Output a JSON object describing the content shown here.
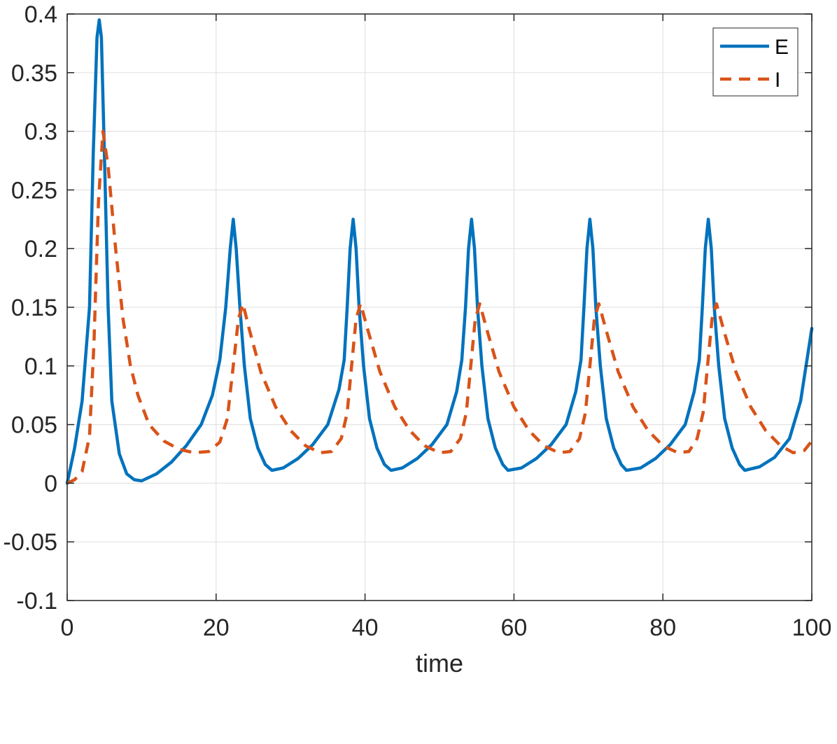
{
  "chart_data": {
    "type": "line",
    "title": "",
    "xlabel": "time",
    "ylabel": "",
    "xlim": [
      0,
      100
    ],
    "ylim": [
      -0.1,
      0.4
    ],
    "xticks": [
      "0",
      "20",
      "40",
      "60",
      "80",
      "100"
    ],
    "yticks": [
      "-0.1",
      "-0.05",
      "0",
      "0.05",
      "0.1",
      "0.15",
      "0.2",
      "0.25",
      "0.3",
      "0.35",
      "0.4"
    ],
    "grid": true,
    "legend_position": "top-right",
    "series": [
      {
        "name": "E",
        "color": "#0072BD",
        "style": "solid",
        "points": [
          [
            0,
            0.0
          ],
          [
            1,
            0.03
          ],
          [
            2,
            0.07
          ],
          [
            3,
            0.15
          ],
          [
            3.5,
            0.28
          ],
          [
            4,
            0.38
          ],
          [
            4.3,
            0.395
          ],
          [
            4.6,
            0.38
          ],
          [
            5,
            0.28
          ],
          [
            5.5,
            0.15
          ],
          [
            6,
            0.07
          ],
          [
            7,
            0.025
          ],
          [
            8,
            0.008
          ],
          [
            9,
            0.003
          ],
          [
            10,
            0.002
          ],
          [
            12,
            0.008
          ],
          [
            14,
            0.018
          ],
          [
            16,
            0.032
          ],
          [
            18,
            0.05
          ],
          [
            19.5,
            0.075
          ],
          [
            20.5,
            0.105
          ],
          [
            21.3,
            0.15
          ],
          [
            21.9,
            0.2
          ],
          [
            22.3,
            0.225
          ],
          [
            22.7,
            0.2
          ],
          [
            23.2,
            0.15
          ],
          [
            23.8,
            0.1
          ],
          [
            24.6,
            0.055
          ],
          [
            25.6,
            0.03
          ],
          [
            26.6,
            0.016
          ],
          [
            27.5,
            0.011
          ],
          [
            29,
            0.013
          ],
          [
            31,
            0.021
          ],
          [
            33,
            0.033
          ],
          [
            35,
            0.05
          ],
          [
            36.5,
            0.08
          ],
          [
            37.2,
            0.105
          ],
          [
            37.6,
            0.15
          ],
          [
            38,
            0.2
          ],
          [
            38.4,
            0.225
          ],
          [
            38.8,
            0.2
          ],
          [
            39.2,
            0.15
          ],
          [
            39.8,
            0.1
          ],
          [
            40.6,
            0.055
          ],
          [
            41.6,
            0.03
          ],
          [
            42.6,
            0.016
          ],
          [
            43.5,
            0.011
          ],
          [
            45,
            0.013
          ],
          [
            47,
            0.021
          ],
          [
            49,
            0.033
          ],
          [
            51,
            0.05
          ],
          [
            52.3,
            0.078
          ],
          [
            53,
            0.105
          ],
          [
            53.5,
            0.15
          ],
          [
            53.9,
            0.2
          ],
          [
            54.3,
            0.225
          ],
          [
            54.7,
            0.2
          ],
          [
            55.1,
            0.15
          ],
          [
            55.7,
            0.1
          ],
          [
            56.5,
            0.055
          ],
          [
            57.5,
            0.03
          ],
          [
            58.5,
            0.016
          ],
          [
            59.2,
            0.011
          ],
          [
            61,
            0.013
          ],
          [
            63,
            0.021
          ],
          [
            65,
            0.033
          ],
          [
            67,
            0.05
          ],
          [
            68.3,
            0.078
          ],
          [
            69,
            0.105
          ],
          [
            69.4,
            0.15
          ],
          [
            69.8,
            0.2
          ],
          [
            70.2,
            0.225
          ],
          [
            70.6,
            0.2
          ],
          [
            71,
            0.15
          ],
          [
            71.6,
            0.1
          ],
          [
            72.4,
            0.055
          ],
          [
            73.4,
            0.03
          ],
          [
            74.4,
            0.016
          ],
          [
            75.1,
            0.011
          ],
          [
            77,
            0.013
          ],
          [
            79,
            0.021
          ],
          [
            81,
            0.033
          ],
          [
            83,
            0.05
          ],
          [
            84.2,
            0.078
          ],
          [
            84.9,
            0.105
          ],
          [
            85.3,
            0.15
          ],
          [
            85.7,
            0.2
          ],
          [
            86.1,
            0.225
          ],
          [
            86.5,
            0.2
          ],
          [
            86.9,
            0.15
          ],
          [
            87.5,
            0.1
          ],
          [
            88.3,
            0.055
          ],
          [
            89.3,
            0.03
          ],
          [
            90.3,
            0.016
          ],
          [
            91,
            0.011
          ],
          [
            93,
            0.014
          ],
          [
            95,
            0.022
          ],
          [
            97,
            0.038
          ],
          [
            98.5,
            0.07
          ],
          [
            100,
            0.132
          ]
        ]
      },
      {
        "name": "I",
        "color": "#D95319",
        "style": "dashed",
        "points": [
          [
            0,
            0.0
          ],
          [
            1,
            0.003
          ],
          [
            2,
            0.01
          ],
          [
            3,
            0.04
          ],
          [
            3.6,
            0.12
          ],
          [
            4.2,
            0.24
          ],
          [
            4.8,
            0.3
          ],
          [
            5.5,
            0.27
          ],
          [
            6.5,
            0.2
          ],
          [
            7.5,
            0.14
          ],
          [
            8.5,
            0.1
          ],
          [
            9.5,
            0.075
          ],
          [
            11,
            0.05
          ],
          [
            13,
            0.036
          ],
          [
            15,
            0.029
          ],
          [
            17,
            0.026
          ],
          [
            19,
            0.027
          ],
          [
            20.5,
            0.035
          ],
          [
            21.5,
            0.055
          ],
          [
            22.3,
            0.1
          ],
          [
            23,
            0.14
          ],
          [
            23.6,
            0.153
          ],
          [
            24.5,
            0.13
          ],
          [
            26,
            0.095
          ],
          [
            28,
            0.065
          ],
          [
            30,
            0.045
          ],
          [
            32,
            0.032
          ],
          [
            34,
            0.026
          ],
          [
            35.5,
            0.027
          ],
          [
            36.8,
            0.038
          ],
          [
            37.6,
            0.06
          ],
          [
            38.2,
            0.1
          ],
          [
            38.8,
            0.14
          ],
          [
            39.4,
            0.153
          ],
          [
            40.4,
            0.13
          ],
          [
            42,
            0.095
          ],
          [
            44,
            0.065
          ],
          [
            46,
            0.045
          ],
          [
            48,
            0.032
          ],
          [
            50,
            0.026
          ],
          [
            51.5,
            0.027
          ],
          [
            52.8,
            0.038
          ],
          [
            53.6,
            0.06
          ],
          [
            54.2,
            0.1
          ],
          [
            54.8,
            0.14
          ],
          [
            55.4,
            0.153
          ],
          [
            56.4,
            0.13
          ],
          [
            58,
            0.095
          ],
          [
            60,
            0.065
          ],
          [
            62,
            0.045
          ],
          [
            64,
            0.032
          ],
          [
            66,
            0.026
          ],
          [
            67.5,
            0.027
          ],
          [
            68.8,
            0.038
          ],
          [
            69.6,
            0.06
          ],
          [
            70.2,
            0.1
          ],
          [
            70.8,
            0.14
          ],
          [
            71.4,
            0.153
          ],
          [
            72.4,
            0.13
          ],
          [
            74,
            0.095
          ],
          [
            76,
            0.065
          ],
          [
            78,
            0.045
          ],
          [
            80,
            0.032
          ],
          [
            82,
            0.026
          ],
          [
            83.5,
            0.027
          ],
          [
            84.6,
            0.038
          ],
          [
            85.4,
            0.06
          ],
          [
            86,
            0.1
          ],
          [
            86.6,
            0.14
          ],
          [
            87.2,
            0.153
          ],
          [
            88.2,
            0.13
          ],
          [
            89.8,
            0.095
          ],
          [
            91.8,
            0.065
          ],
          [
            93.8,
            0.045
          ],
          [
            95.8,
            0.032
          ],
          [
            97.5,
            0.026
          ],
          [
            99,
            0.028
          ],
          [
            100,
            0.036
          ]
        ]
      }
    ]
  }
}
